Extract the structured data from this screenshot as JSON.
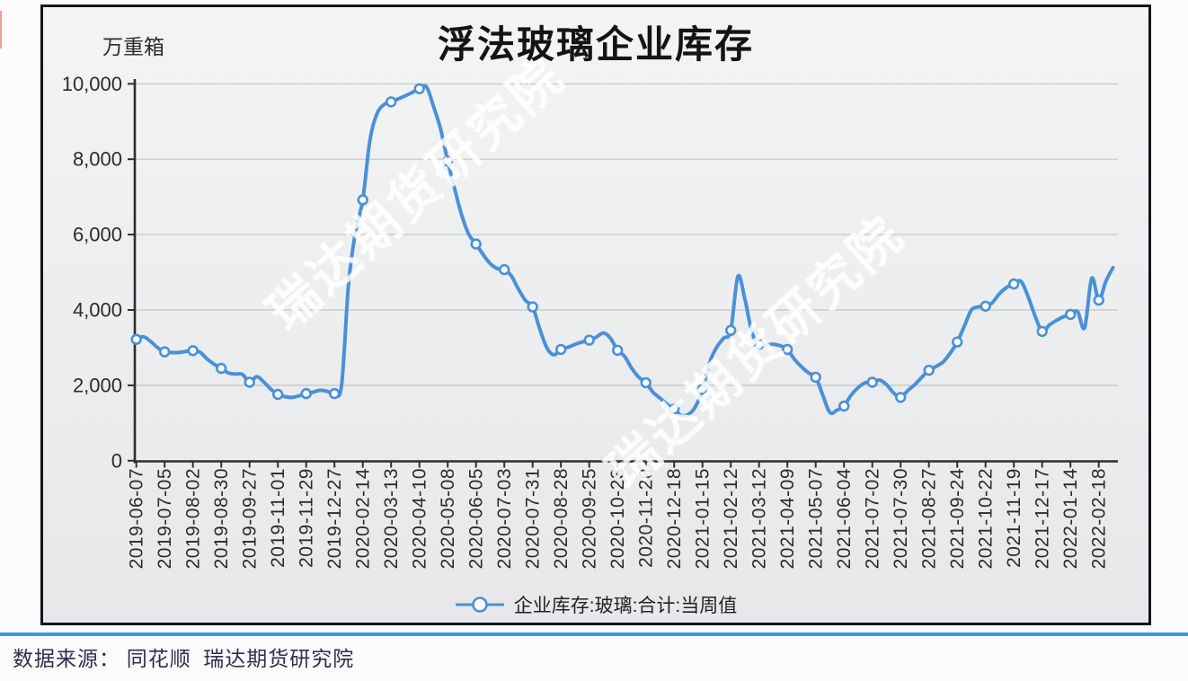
{
  "page": {
    "divider_color": "#2aa3dc",
    "source_note": "数据来源： 同花顺  瑞达期货研究院"
  },
  "chart": {
    "title": "浮法玻璃企业库存",
    "unit_label": "万重箱",
    "watermark": {
      "text": "瑞达期货研究院",
      "instances": 2
    },
    "legend": {
      "label": "企业库存:玻璃:合计:当周值"
    }
  },
  "chart_data": {
    "type": "line",
    "title": "浮法玻璃企业库存",
    "xlabel": "",
    "ylabel": "万重箱",
    "ylim": [
      0,
      10000
    ],
    "grid": "horizontal",
    "legend_position": "bottom-center",
    "y_ticks": [
      {
        "value": 0,
        "label": "0"
      },
      {
        "value": 2000,
        "label": "2,000"
      },
      {
        "value": 4000,
        "label": "4,000"
      },
      {
        "value": 6000,
        "label": "6,000"
      },
      {
        "value": 8000,
        "label": "8,000"
      },
      {
        "value": 10000,
        "label": "10,000"
      }
    ],
    "categories": [
      "2019-06-07",
      "2019-07-05",
      "2019-08-02",
      "2019-08-30",
      "2019-09-27",
      "2019-11-01",
      "2019-11-29",
      "2019-12-27",
      "2020-02-14",
      "2020-03-13",
      "2020-04-10",
      "2020-05-08",
      "2020-06-05",
      "2020-07-03",
      "2020-07-31",
      "2020-08-28",
      "2020-09-25",
      "2020-10-23",
      "2020-11-20",
      "2020-12-18",
      "2021-01-15",
      "2021-02-12",
      "2021-03-12",
      "2021-04-09",
      "2021-05-07",
      "2021-06-04",
      "2021-07-02",
      "2021-07-30",
      "2021-08-27",
      "2021-09-24",
      "2021-10-22",
      "2021-11-19",
      "2021-12-17",
      "2022-01-14",
      "2022-02-18"
    ],
    "points_per_category": 4,
    "series": [
      {
        "name": "企业库存:玻璃:合计:当周值",
        "color": "#4a90d8",
        "marker": "circle-white",
        "marker_every": 4,
        "values": [
          3220,
          3290,
          3170,
          3000,
          2890,
          2870,
          2870,
          2900,
          2920,
          2880,
          2700,
          2560,
          2450,
          2330,
          2300,
          2290,
          2080,
          2230,
          2090,
          1900,
          1760,
          1700,
          1680,
          1720,
          1780,
          1820,
          1870,
          1840,
          1780,
          2000,
          4700,
          6100,
          6920,
          8490,
          9200,
          9450,
          9520,
          9600,
          9680,
          9770,
          9870,
          9920,
          9400,
          8800,
          7950,
          7200,
          6500,
          6000,
          5750,
          5470,
          5230,
          5100,
          5070,
          4900,
          4550,
          4250,
          4080,
          3500,
          3000,
          2810,
          2950,
          3010,
          3090,
          3150,
          3200,
          3280,
          3390,
          3250,
          2930,
          2770,
          2450,
          2215,
          2070,
          1820,
          1660,
          1500,
          1370,
          1200,
          1230,
          1430,
          1890,
          2600,
          3010,
          3250,
          3460,
          4890,
          4280,
          3400,
          3090,
          3070,
          3090,
          3050,
          2950,
          2690,
          2490,
          2330,
          2215,
          1740,
          1280,
          1340,
          1450,
          1740,
          1940,
          2070,
          2080,
          2140,
          2020,
          1800,
          1680,
          1860,
          2020,
          2215,
          2400,
          2500,
          2620,
          2850,
          3150,
          3570,
          4000,
          4080,
          4100,
          4200,
          4440,
          4600,
          4690,
          4760,
          4360,
          3840,
          3430,
          3600,
          3720,
          3820,
          3880,
          3960,
          3530,
          4840,
          4260,
          4760,
          5120
        ]
      }
    ],
    "colors": {
      "line": "#4a90d8",
      "marker_fill": "#fdfdfe",
      "grid": "#c3c6c7",
      "axis": "#2e2e2e",
      "tick_label": "#2b2b2b",
      "watermark": "#ffffff"
    }
  }
}
